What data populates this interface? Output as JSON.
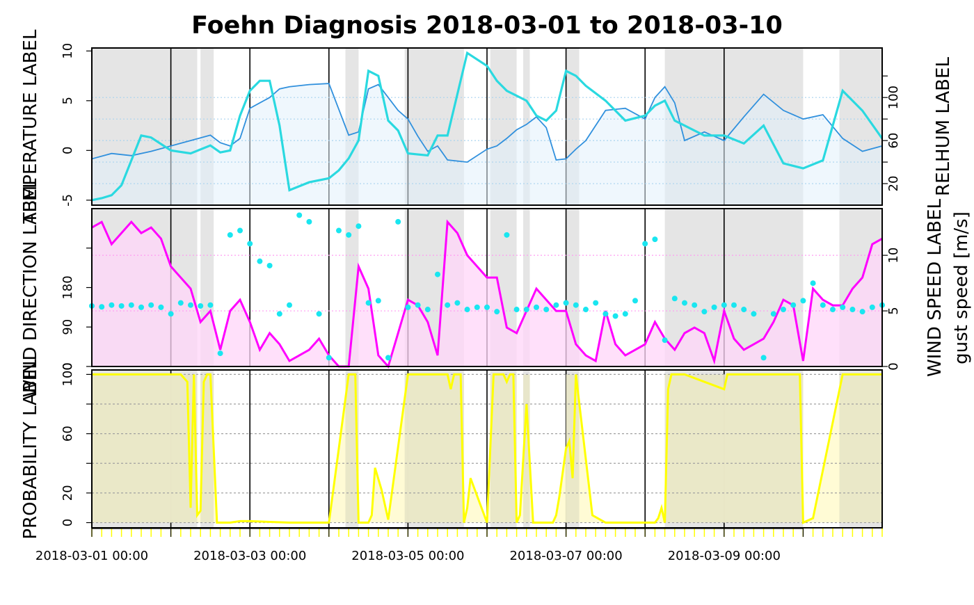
{
  "title": "Foehn Diagnosis 2018-03-01 to 2018-03-10",
  "x_tick_labels": [
    "2018-03-01 00:00",
    "2018-03-03 00:00",
    "2018-03-05 00:00",
    "2018-03-07 00:00",
    "2018-03-09 00:00"
  ],
  "colors": {
    "foehn_shading": "#e5e5e5",
    "temperature": "#2ad9e0",
    "relhum_line": "#3090dd",
    "relhum_fill": "#e2f0fb",
    "wind_speed": "#ff00ff",
    "wind_fill": "#ffd6f8",
    "wind_direction": "#19e6f0",
    "probability": "#ffff00",
    "probability_fill": "#e8e6c6",
    "grid_blue": "#a9d3ef",
    "grid_pink": "#ff9cf2",
    "grid_gray": "#a0a0a0"
  },
  "chart_data": [
    {
      "type": "line",
      "panel": "temperature-relhum",
      "x_start": "2018-03-01 00:00",
      "x_end": "2018-03-10 00:00",
      "ylabel_left": "TEMPERATURE LABEL",
      "ylabel_right": "RELHUM LABEL",
      "ylim": [
        -5.5,
        10.3
      ],
      "yticks": [
        -5,
        0,
        5,
        10
      ],
      "ylim_right": [
        0,
        146
      ],
      "yticks_right": [
        20,
        60,
        100
      ],
      "grid": "dotted",
      "series": [
        {
          "name": "",
          "axis": "left",
          "x_hours": [
            0,
            3,
            6,
            9,
            12,
            15,
            18,
            24,
            30,
            36,
            39,
            42,
            45,
            48,
            51,
            54,
            57,
            60,
            66,
            72,
            75,
            78,
            81,
            84,
            87,
            90,
            93,
            96,
            99,
            102,
            105,
            108,
            114,
            120,
            123,
            126,
            129,
            132,
            135,
            138,
            141,
            144,
            147,
            150,
            156,
            162,
            168,
            171,
            174,
            177,
            180,
            186,
            192,
            198,
            204,
            210,
            216,
            222,
            228,
            234,
            240
          ],
          "values": [
            -5,
            -4.8,
            -4.5,
            -3.5,
            -1,
            1.5,
            1.3,
            0,
            -0.3,
            0.5,
            -0.2,
            0,
            3.5,
            6,
            7,
            7,
            2.5,
            -4,
            -3.2,
            -2.8,
            -2,
            -0.8,
            1,
            8,
            7.5,
            3,
            2,
            -0.3,
            -0.4,
            -0.5,
            1.5,
            1.5,
            9.8,
            8.5,
            7,
            6,
            5.5,
            5,
            3.5,
            3,
            4,
            8,
            7.5,
            6.5,
            5,
            3,
            3.5,
            4.5,
            5,
            3,
            2.5,
            1.5,
            1.5,
            0.7,
            2.5,
            -1.3,
            -1.8,
            -1,
            6,
            4,
            1.2
          ]
        },
        {
          "name": "",
          "axis": "right",
          "x_hours": [
            0,
            6,
            12,
            18,
            24,
            30,
            36,
            39,
            42,
            45,
            48,
            51,
            54,
            57,
            60,
            66,
            72,
            78,
            81,
            84,
            87,
            90,
            93,
            96,
            99,
            102,
            105,
            108,
            114,
            120,
            123,
            126,
            129,
            132,
            135,
            138,
            141,
            144,
            147,
            150,
            156,
            162,
            168,
            171,
            174,
            177,
            180,
            186,
            192,
            198,
            204,
            210,
            216,
            222,
            228,
            234,
            240
          ],
          "values": [
            43,
            48,
            46,
            50,
            55,
            60,
            65,
            58,
            55,
            62,
            90,
            95,
            100,
            108,
            110,
            112,
            113,
            65,
            68,
            108,
            112,
            100,
            88,
            80,
            64,
            50,
            55,
            42,
            40,
            52,
            55,
            62,
            70,
            75,
            82,
            72,
            42,
            43,
            52,
            60,
            88,
            90,
            80,
            100,
            110,
            95,
            60,
            68,
            60,
            82,
            103,
            88,
            80,
            84,
            62,
            50,
            55
          ]
        }
      ]
    },
    {
      "type": "line",
      "panel": "wind",
      "x_start": "2018-03-01 00:00",
      "x_end": "2018-03-10 00:00",
      "ylabel_left": "WIND DIRECTION LABEL",
      "ylabel_right": "WIND SPEED LABEL",
      "ylabel_right2": "gust speed [m/s]",
      "ylim": [
        0,
        360
      ],
      "yticks": [
        0,
        90,
        180
      ],
      "ylim_right": [
        0,
        14.2
      ],
      "yticks_right": [
        0,
        5,
        10
      ],
      "grid": "dotted",
      "series": [
        {
          "name": "",
          "axis": "right",
          "x_hours": [
            0,
            3,
            6,
            9,
            12,
            15,
            18,
            21,
            24,
            27,
            30,
            33,
            36,
            39,
            42,
            45,
            48,
            51,
            54,
            57,
            60,
            63,
            66,
            69,
            72,
            75,
            78,
            81,
            84,
            87,
            90,
            93,
            96,
            99,
            102,
            105,
            108,
            111,
            114,
            117,
            120,
            123,
            126,
            129,
            132,
            135,
            138,
            141,
            144,
            147,
            150,
            153,
            156,
            159,
            162,
            165,
            168,
            171,
            174,
            177,
            180,
            183,
            186,
            189,
            192,
            195,
            198,
            201,
            204,
            207,
            210,
            213,
            216,
            219,
            222,
            225,
            228,
            231,
            234,
            237,
            240
          ],
          "values": [
            12.5,
            13,
            11,
            12,
            13,
            12,
            12.5,
            11.5,
            9,
            8,
            7,
            4,
            5,
            1.5,
            5,
            6,
            4,
            1.5,
            3,
            2,
            0.5,
            1,
            1.5,
            2.5,
            1,
            0,
            0,
            9,
            7,
            1,
            0,
            3,
            6,
            5.5,
            4,
            1,
            13,
            12,
            10,
            9,
            8,
            8,
            3.5,
            3,
            5,
            7,
            6,
            5,
            5,
            2,
            1,
            0.5,
            5,
            2,
            1,
            1.5,
            2,
            4,
            2.5,
            1.5,
            3,
            3.5,
            3,
            0.5,
            5,
            2.5,
            1.5,
            2,
            2.5,
            4,
            6,
            5.5,
            0.5,
            7,
            6,
            5.5,
            5.5,
            7,
            8,
            11,
            11.5
          ]
        },
        {
          "name": "",
          "axis": "left",
          "x_hours": [
            0,
            3,
            6,
            9,
            12,
            15,
            18,
            21,
            24,
            27,
            30,
            33,
            36,
            39,
            42,
            45,
            48,
            51,
            54,
            57,
            60,
            63,
            66,
            69,
            72,
            75,
            78,
            81,
            84,
            87,
            90,
            93,
            96,
            99,
            102,
            105,
            108,
            111,
            114,
            117,
            120,
            123,
            126,
            129,
            132,
            135,
            138,
            141,
            144,
            147,
            150,
            153,
            156,
            159,
            162,
            165,
            168,
            171,
            174,
            177,
            180,
            183,
            186,
            189,
            192,
            195,
            198,
            201,
            204,
            207,
            210,
            213,
            216,
            219,
            222,
            225,
            228,
            231,
            234,
            237,
            240
          ],
          "values": [
            138,
            136,
            140,
            138,
            140,
            135,
            140,
            135,
            120,
            145,
            140,
            138,
            140,
            30,
            300,
            310,
            280,
            240,
            230,
            120,
            140,
            345,
            330,
            120,
            20,
            310,
            300,
            320,
            145,
            150,
            20,
            330,
            135,
            140,
            130,
            210,
            140,
            145,
            130,
            135,
            135,
            125,
            300,
            130,
            130,
            135,
            130,
            140,
            145,
            140,
            130,
            145,
            120,
            115,
            120,
            150,
            280,
            290,
            60,
            155,
            145,
            140,
            125,
            135,
            140,
            140,
            130,
            120,
            20,
            120,
            130,
            140,
            150,
            190,
            140,
            130,
            135,
            130,
            125,
            135,
            140
          ]
        }
      ]
    },
    {
      "type": "line",
      "panel": "probability",
      "x_start": "2018-03-01 00:00",
      "x_end": "2018-03-10 00:00",
      "ylabel_left": "PROBABILITY LABEL",
      "ylim": [
        -3.5,
        103
      ],
      "yticks": [
        0,
        20,
        60,
        100
      ],
      "grid": "dotted",
      "series": [
        {
          "name": "",
          "x_hours": [
            0,
            24,
            27,
            29,
            30,
            31,
            32,
            33,
            34,
            35,
            36,
            38,
            40,
            42,
            45,
            48,
            60,
            72,
            78,
            80,
            81,
            82,
            83,
            84,
            85,
            86,
            88,
            90,
            96,
            108,
            109,
            110,
            111,
            112,
            113,
            114,
            115,
            120,
            122,
            124,
            125,
            126,
            127,
            128,
            129,
            130,
            132,
            134,
            136,
            138,
            140,
            141,
            142,
            144,
            145,
            146,
            147,
            152,
            156,
            168,
            170,
            171,
            172,
            173,
            174,
            175,
            176,
            177,
            180,
            186,
            192,
            193,
            195,
            196,
            197,
            198,
            199,
            200,
            201,
            202,
            215,
            216,
            219,
            228,
            229,
            230,
            231,
            234,
            240
          ],
          "values": [
            100,
            100,
            100,
            95,
            10,
            100,
            5,
            8,
            95,
            100,
            100,
            0,
            0,
            0,
            1,
            1,
            0,
            0,
            100,
            100,
            0,
            0,
            0,
            0,
            5,
            37,
            22,
            2,
            100,
            100,
            90,
            100,
            100,
            100,
            0,
            10,
            30,
            0,
            100,
            100,
            100,
            95,
            100,
            100,
            0,
            5,
            80,
            0,
            0,
            0,
            0,
            5,
            18,
            50,
            55,
            30,
            100,
            5,
            0,
            0,
            0,
            0,
            3,
            10,
            0,
            90,
            100,
            100,
            100,
            95,
            90,
            100,
            100,
            100,
            100,
            100,
            100,
            100,
            100,
            100,
            100,
            0,
            3,
            100,
            100,
            100,
            100,
            100,
            100
          ]
        }
      ]
    }
  ]
}
